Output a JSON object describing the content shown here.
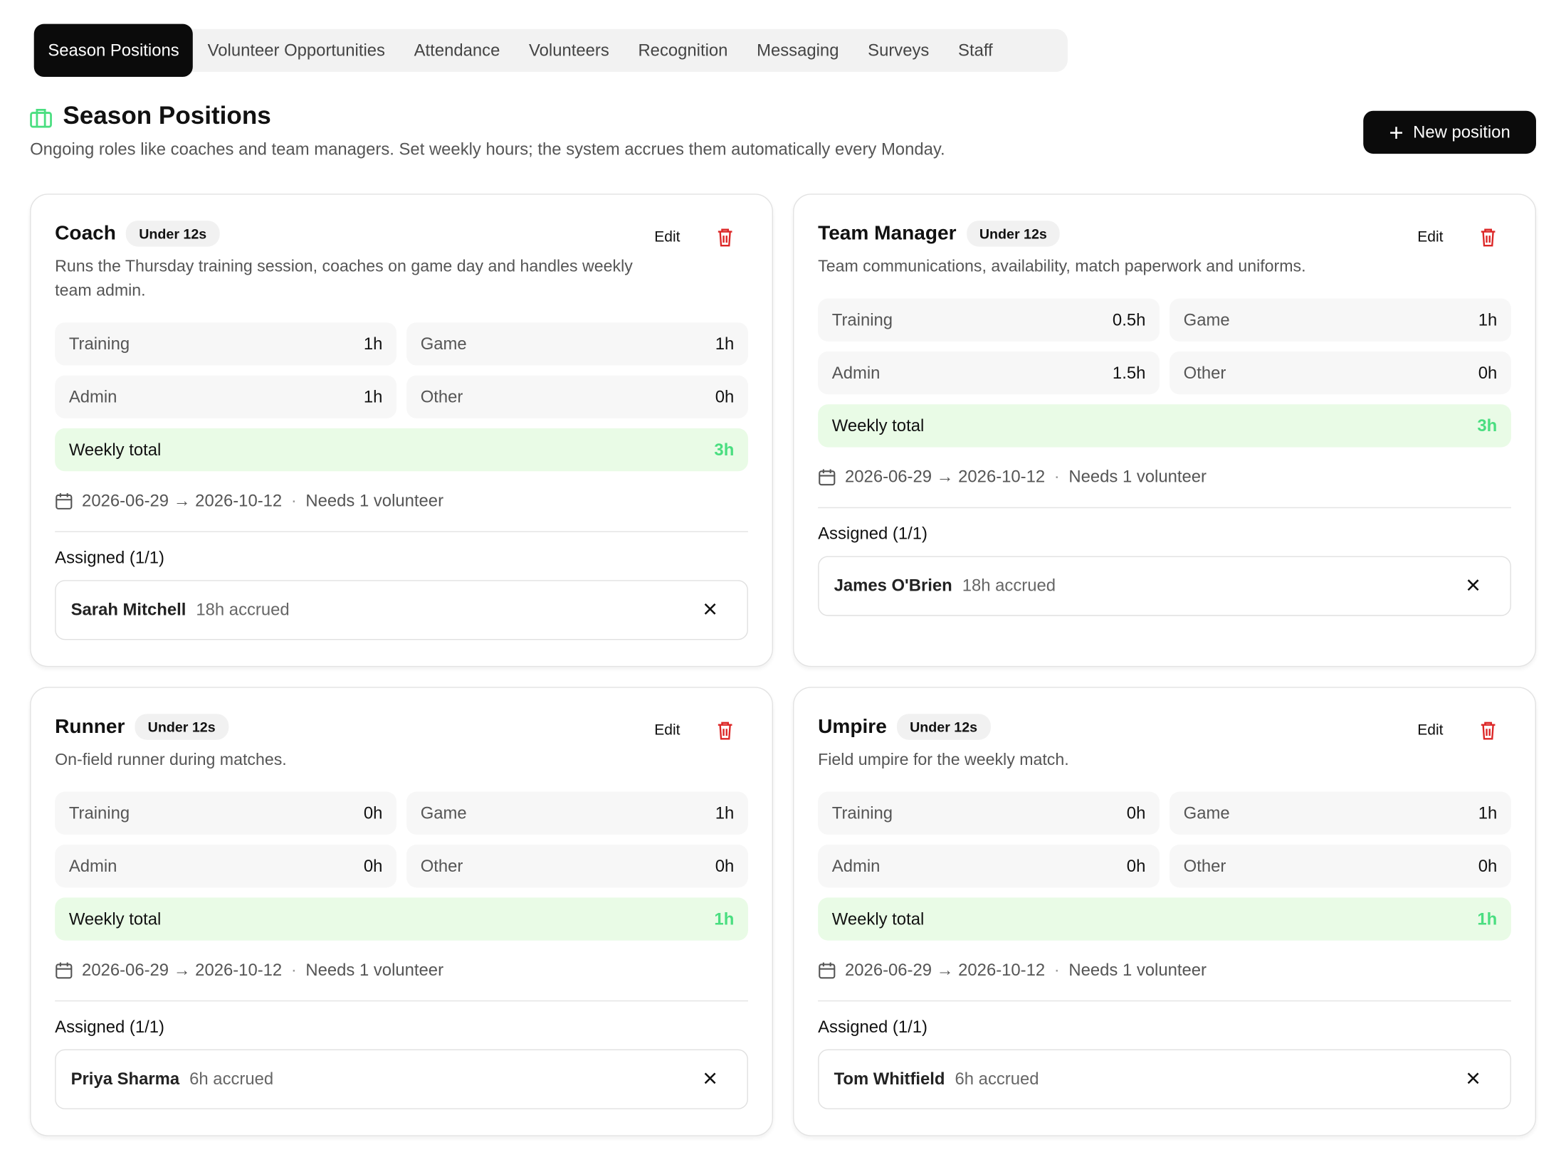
{
  "tabs": [
    "Season Positions",
    "Volunteer Opportunities",
    "Attendance",
    "Volunteers",
    "Recognition",
    "Messaging",
    "Surveys",
    "Staff"
  ],
  "header": {
    "title": "Season Positions",
    "description": "Ongoing roles like coaches and team managers. Set weekly hours; the system accrues them automatically every Monday.",
    "new_button": "New position"
  },
  "cards": [
    {
      "title": "Coach",
      "badge": "Under 12s",
      "edit": "Edit",
      "description": "Runs the Thursday training session, coaches on game day and handles weekly team admin.",
      "hours": [
        {
          "label": "Training",
          "value": "1h"
        },
        {
          "label": "Game",
          "value": "1h"
        },
        {
          "label": "Admin",
          "value": "1h"
        },
        {
          "label": "Other",
          "value": "0h"
        }
      ],
      "total_label": "Weekly total",
      "total": "3h",
      "dates": "2026-06-29 → 2026-10-12",
      "needs": "Needs 1 volunteer",
      "assigned_label": "Assigned (1/1)",
      "assignee": "Sarah Mitchell",
      "accrued": "18h accrued"
    },
    {
      "title": "Team Manager",
      "badge": "Under 12s",
      "edit": "Edit",
      "description": "Team communications, availability, match paperwork and uniforms.",
      "hours": [
        {
          "label": "Training",
          "value": "0.5h"
        },
        {
          "label": "Game",
          "value": "1h"
        },
        {
          "label": "Admin",
          "value": "1.5h"
        },
        {
          "label": "Other",
          "value": "0h"
        }
      ],
      "total_label": "Weekly total",
      "total": "3h",
      "dates": "2026-06-29 → 2026-10-12",
      "needs": "Needs 1 volunteer",
      "assigned_label": "Assigned (1/1)",
      "assignee": "James O'Brien",
      "accrued": "18h accrued"
    },
    {
      "title": "Runner",
      "badge": "Under 12s",
      "edit": "Edit",
      "description": "On-field runner during matches.",
      "hours": [
        {
          "label": "Training",
          "value": "0h"
        },
        {
          "label": "Game",
          "value": "1h"
        },
        {
          "label": "Admin",
          "value": "0h"
        },
        {
          "label": "Other",
          "value": "0h"
        }
      ],
      "total_label": "Weekly total",
      "total": "1h",
      "dates": "2026-06-29 → 2026-10-12",
      "needs": "Needs 1 volunteer",
      "assigned_label": "Assigned (1/1)",
      "assignee": "Priya Sharma",
      "accrued": "6h accrued"
    },
    {
      "title": "Umpire",
      "badge": "Under 12s",
      "edit": "Edit",
      "description": "Field umpire for the weekly match.",
      "hours": [
        {
          "label": "Training",
          "value": "0h"
        },
        {
          "label": "Game",
          "value": "1h"
        },
        {
          "label": "Admin",
          "value": "0h"
        },
        {
          "label": "Other",
          "value": "0h"
        }
      ],
      "total_label": "Weekly total",
      "total": "1h",
      "dates": "2026-06-29 → 2026-10-12",
      "needs": "Needs 1 volunteer",
      "assigned_label": "Assigned (1/1)",
      "assignee": "Tom Whitfield",
      "accrued": "6h accrued"
    }
  ]
}
